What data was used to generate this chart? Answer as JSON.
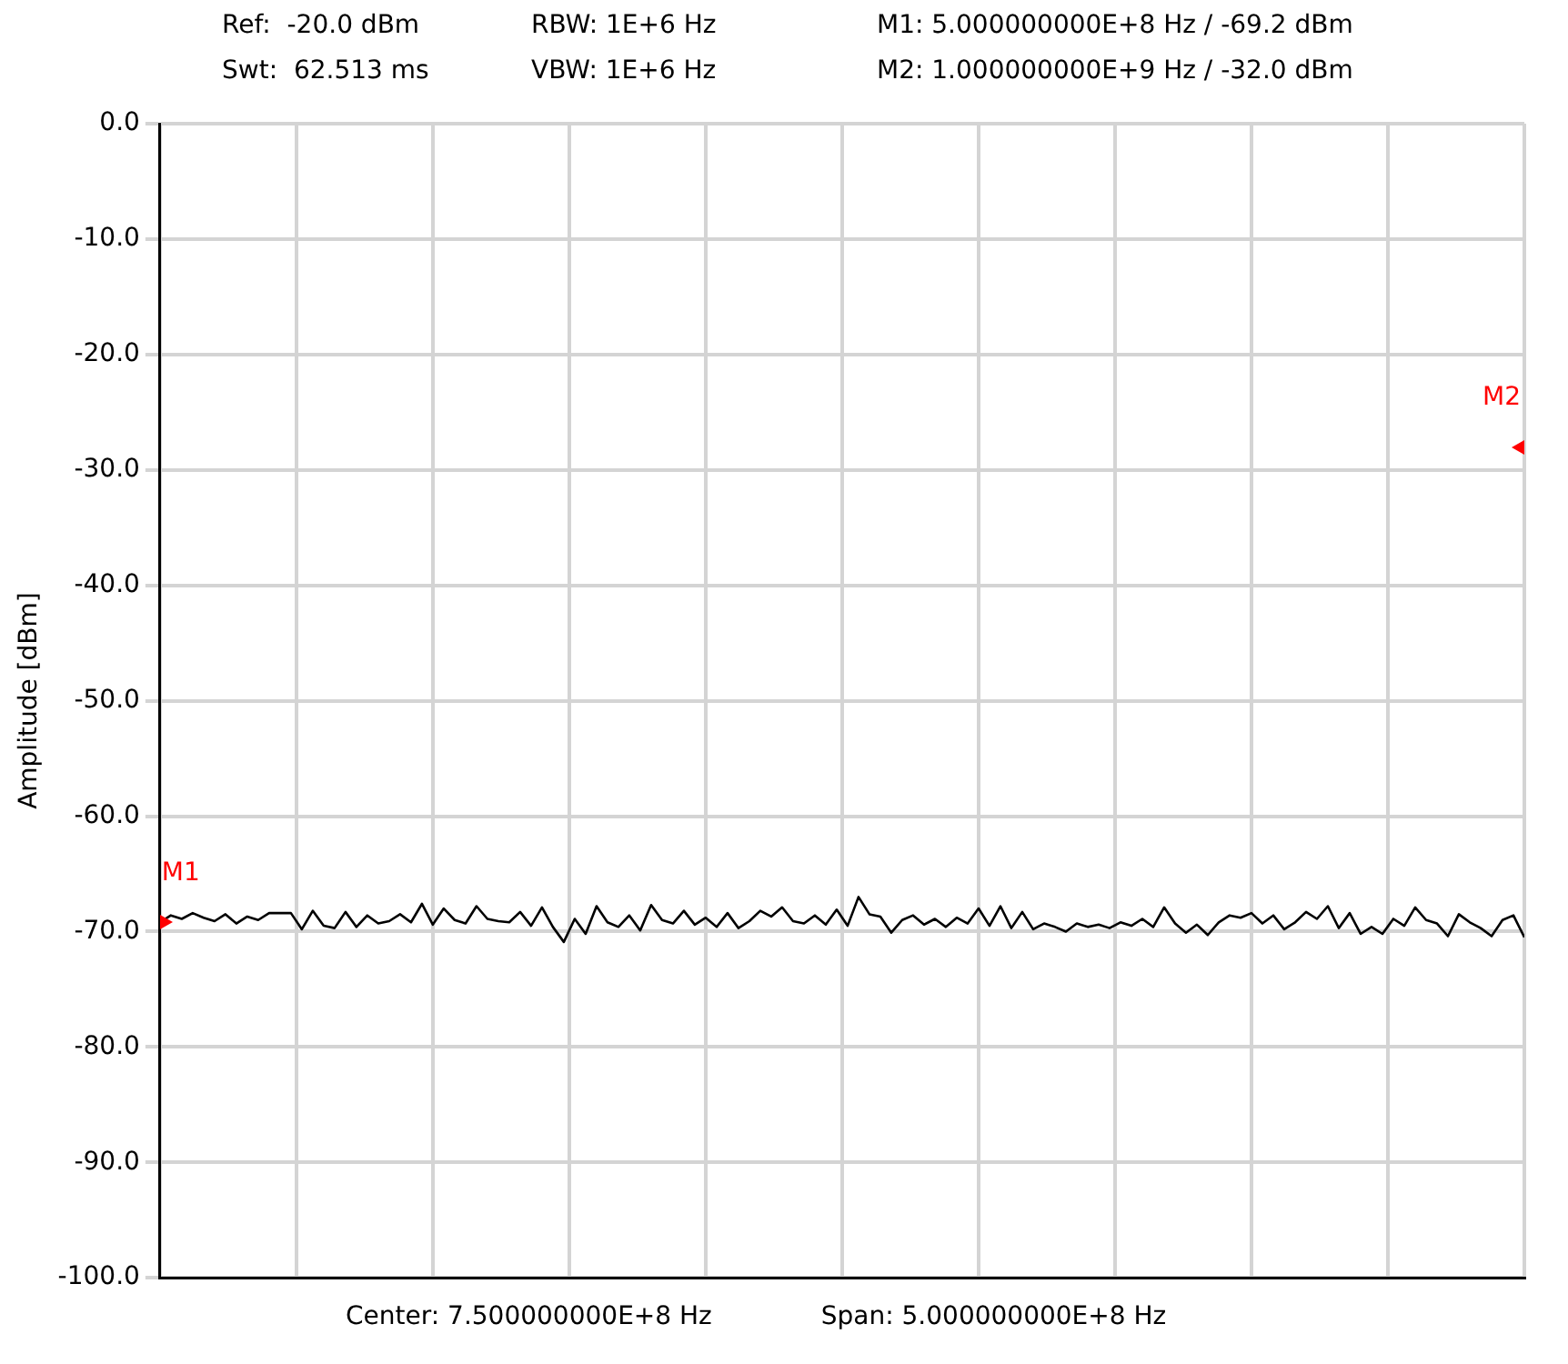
{
  "chart_data": {
    "type": "line",
    "ylabel": "Amplitude [dBm]",
    "annotations": [
      "Ref:  -20.0 dBm",
      "RBW: 1E+6 Hz",
      "M1: 5.000000000E+8 Hz / -69.2 dBm",
      "Swt:  62.513 ms",
      "VBW: 1E+6 Hz",
      "M2: 1.000000000E+9 Hz / -32.0 dBm",
      "Center: 7.500000000E+8 Hz",
      "Span: 5.000000000E+8 Hz",
      {
        "text": "M1",
        "y": -69.2
      },
      "M2"
    ],
    "categories": [
      null,
      null,
      null,
      null,
      null,
      null,
      null,
      null,
      null,
      null,
      null,
      null,
      null,
      null,
      null,
      null,
      null,
      null,
      null,
      null,
      null,
      null,
      null,
      null,
      null,
      null,
      null,
      null,
      null,
      null,
      null,
      null,
      null,
      null,
      null,
      null,
      null,
      null,
      null,
      null,
      null,
      null,
      null,
      null,
      null,
      null,
      null,
      null,
      null,
      null,
      null,
      null,
      null,
      null,
      null,
      null,
      null,
      null,
      null,
      null,
      null,
      null,
      null,
      null,
      null,
      null,
      null,
      null,
      null,
      null,
      null,
      null,
      null,
      null,
      null,
      null,
      null,
      null,
      null,
      null,
      null,
      null,
      null,
      null,
      null,
      null,
      null,
      null,
      null,
      null,
      null,
      null,
      null,
      null,
      null,
      null,
      null,
      null,
      null,
      null,
      null,
      null,
      null,
      null,
      null,
      null,
      null,
      null,
      null,
      null,
      null,
      null,
      null,
      null,
      null,
      null,
      null,
      null,
      null,
      null,
      null,
      null,
      null,
      null,
      null,
      null
    ],
    "series": [
      {
        "color": "#000000",
        "values": [
          -69.2,
          -68.6,
          -68.9,
          -68.4,
          -68.8,
          -69.1,
          -68.5,
          -69.3,
          -68.7,
          -69.0,
          -68.4,
          -68.4,
          -68.4,
          -69.8,
          -68.2,
          -69.5,
          -69.7,
          -68.3,
          -69.6,
          -68.6,
          -69.3,
          -69.1,
          -68.5,
          -69.2,
          -67.6,
          -69.4,
          -68.0,
          -69.0,
          -69.3,
          -67.8,
          -68.9,
          -69.1,
          -69.2,
          -68.3,
          -69.5,
          -67.9,
          -69.6,
          -70.9,
          -68.9,
          -70.2,
          -67.8,
          -69.2,
          -69.6,
          -68.6,
          -69.9,
          -67.7,
          -69.0,
          -69.3,
          -68.2,
          -69.4,
          -68.8,
          -69.6,
          -68.4,
          -69.7,
          -69.1,
          -68.2,
          -68.7,
          -67.9,
          -69.1,
          -69.3,
          -68.6,
          -69.4,
          -68.1,
          -69.5,
          -67.0,
          -68.5,
          -68.7,
          -70.1,
          -69.0,
          -68.6,
          -69.4,
          -68.9,
          -69.6,
          -68.8,
          -69.3,
          -68.0,
          -69.5,
          -67.8,
          -69.7,
          -68.3,
          -69.8,
          -69.3,
          -69.6,
          -70.0,
          -69.3,
          -69.6,
          -69.4,
          -69.7,
          -69.2,
          -69.5,
          -68.9,
          -69.6,
          -67.9,
          -69.3,
          -70.1,
          -69.4,
          -70.3,
          -69.2,
          -68.6,
          -68.8,
          -68.4,
          -69.3,
          -68.6,
          -69.8,
          -69.2,
          -68.3,
          -68.9,
          -67.8,
          -69.7,
          -68.4,
          -70.2,
          -69.6,
          -70.2,
          -68.9,
          -69.5,
          -67.9,
          -69.0,
          -69.3,
          -70.4,
          -68.5,
          -69.2,
          -69.7,
          -70.4,
          -69.0,
          -68.6,
          -70.5
        ]
      }
    ],
    "ylim": [
      -100,
      0
    ],
    "yticks": [
      {
        "value": -100,
        "label": "-100.0"
      },
      {
        "value": -90,
        "label": "-90.0"
      },
      {
        "value": -80,
        "label": "-80.0"
      },
      {
        "value": -70,
        "label": "-70.0"
      },
      {
        "value": -60,
        "label": "-60.0"
      },
      {
        "value": -50,
        "label": "-50.0"
      },
      {
        "value": -40,
        "label": "-40.0"
      },
      {
        "value": -30,
        "label": "-30.0"
      },
      {
        "value": -20,
        "label": "-20.0"
      },
      {
        "value": -10,
        "label": "-10.0"
      },
      {
        "value": 0,
        "label": "0.0"
      }
    ],
    "tick_labels": "y",
    "grid": true,
    "marker": "none",
    "line_style": "solid"
  }
}
